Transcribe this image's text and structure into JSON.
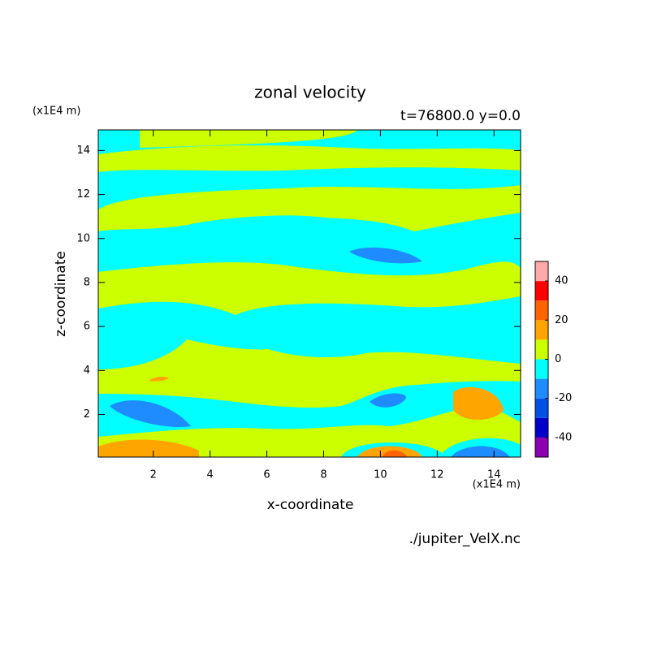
{
  "chart_data": {
    "type": "contour",
    "title": "zonal velocity",
    "subtitle": "t=76800.0 y=0.0",
    "x_label": "x-coordinate",
    "y_label": "z-coordinate",
    "x_unit": "(x1E4 m)",
    "y_unit": "(x1E4 m)",
    "source": "./jupiter_VelX.nc",
    "xlim": [
      0.0625,
      14.9375
    ],
    "ylim": [
      0.0625,
      14.9375
    ],
    "xticks": [
      2,
      4,
      6,
      8,
      10,
      12,
      14
    ],
    "yticks": [
      2,
      4,
      6,
      8,
      10,
      12,
      14
    ],
    "colorbar": {
      "levels": [
        -50,
        -40,
        -30,
        -20,
        -10,
        0,
        10,
        20,
        30,
        40,
        50
      ],
      "colors": [
        "#8c00b4",
        "#0000c8",
        "#0050e6",
        "#1e8cff",
        "#00ffff",
        "#ccff00",
        "#ffa500",
        "#ff6400",
        "#ff0000",
        "#ffaaaa"
      ],
      "ticks": [
        -40,
        -20,
        0,
        20,
        40
      ]
    }
  }
}
